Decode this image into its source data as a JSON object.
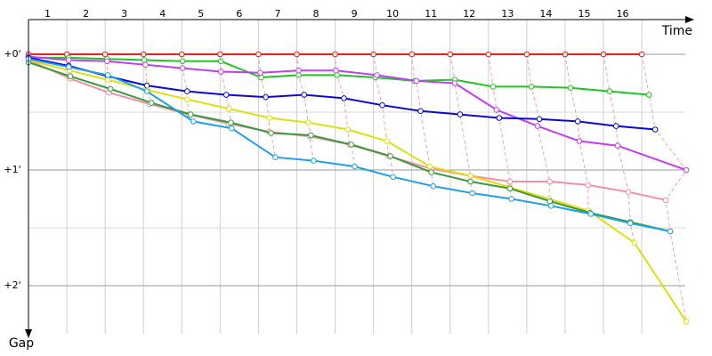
{
  "chart_data": {
    "type": "line",
    "x_label": "Time",
    "y_label": "Gap",
    "xlim": [
      0,
      17.6
    ],
    "ylim": [
      -0.3,
      2.5
    ],
    "xticks": [
      {
        "value": 0.5,
        "label": "1"
      },
      {
        "value": 1.5,
        "label": "2"
      },
      {
        "value": 2.5,
        "label": "3"
      },
      {
        "value": 3.5,
        "label": "4"
      },
      {
        "value": 4.5,
        "label": "5"
      },
      {
        "value": 5.5,
        "label": "6"
      },
      {
        "value": 6.5,
        "label": "7"
      },
      {
        "value": 7.5,
        "label": "8"
      },
      {
        "value": 8.5,
        "label": "9"
      },
      {
        "value": 9.5,
        "label": "10"
      },
      {
        "value": 10.5,
        "label": "11"
      },
      {
        "value": 11.5,
        "label": "12"
      },
      {
        "value": 12.5,
        "label": "13"
      },
      {
        "value": 13.5,
        "label": "14"
      },
      {
        "value": 14.5,
        "label": "15"
      },
      {
        "value": 15.5,
        "label": "16"
      }
    ],
    "xgrid": [
      1,
      2,
      3,
      4,
      5,
      6,
      7,
      8,
      9,
      10,
      11,
      12,
      13,
      14,
      15,
      16
    ],
    "yticks": [
      {
        "value": 0,
        "label": "+0'"
      },
      {
        "value": 1,
        "label": "+1'"
      },
      {
        "value": 2,
        "label": "+2'"
      }
    ],
    "yminor": [
      0.5,
      1.5
    ],
    "series": [
      {
        "color": "#e8201c",
        "x": [
          0,
          1,
          2,
          3,
          4,
          5,
          6,
          7,
          8,
          9,
          10,
          11,
          12,
          13,
          14,
          15,
          16
        ],
        "values": [
          0,
          0,
          0,
          0,
          0,
          0,
          0,
          0,
          0,
          0,
          0,
          0,
          0,
          0,
          0,
          0,
          0
        ]
      },
      {
        "color": "#22c422",
        "x": [
          0,
          1.05,
          2.05,
          3.02,
          4.02,
          5.02,
          6.07,
          7.05,
          8.05,
          9.05,
          10.07,
          11.12,
          12.12,
          13.12,
          14.14,
          15.16,
          16.19
        ],
        "values": [
          0.03,
          0.03,
          0.04,
          0.05,
          0.06,
          0.06,
          0.2,
          0.18,
          0.18,
          0.2,
          0.23,
          0.22,
          0.28,
          0.28,
          0.29,
          0.32,
          0.35
        ]
      },
      {
        "color": "#c040f0",
        "x": [
          0,
          1.05,
          2.05,
          3.05,
          4.02,
          5.02,
          6.05,
          7.05,
          8.02,
          9.09,
          10.12,
          11.12,
          12.21,
          13.28,
          14.37,
          15.37,
          17.16
        ],
        "values": [
          0.02,
          0.05,
          0.06,
          0.09,
          0.12,
          0.15,
          0.16,
          0.14,
          0.14,
          0.18,
          0.23,
          0.25,
          0.48,
          0.62,
          0.75,
          0.79,
          1.0
        ]
      },
      {
        "color": "#0a0ad0",
        "x": [
          0,
          1.05,
          2.07,
          3.09,
          4.14,
          5.16,
          6.19,
          7.19,
          8.23,
          9.23,
          10.23,
          11.26,
          12.28,
          13.33,
          14.33,
          15.33,
          16.35
        ],
        "values": [
          0.03,
          0.1,
          0.19,
          0.27,
          0.32,
          0.35,
          0.37,
          0.35,
          0.38,
          0.44,
          0.49,
          0.52,
          0.55,
          0.56,
          0.58,
          0.62,
          0.65
        ]
      },
      {
        "color": "#f090a8",
        "x": [
          0,
          1.09,
          2.09,
          3.16,
          4.19,
          5.23,
          6.28,
          7.33,
          8.37,
          9.4,
          10.51,
          11.53,
          12.56,
          13.6,
          14.6,
          15.65,
          16.63
        ],
        "values": [
          0.05,
          0.21,
          0.33,
          0.43,
          0.52,
          0.6,
          0.67,
          0.71,
          0.78,
          0.88,
          0.99,
          1.05,
          1.1,
          1.1,
          1.13,
          1.19,
          1.26
        ]
      },
      {
        "color": "#dede10",
        "x": [
          0,
          1.07,
          2.07,
          3.12,
          4.14,
          5.23,
          6.28,
          7.3,
          8.33,
          9.35,
          10.47,
          11.53,
          12.56,
          13.58,
          14.6,
          15.81,
          17.16
        ],
        "values": [
          0.05,
          0.14,
          0.22,
          0.31,
          0.39,
          0.47,
          0.55,
          0.59,
          0.65,
          0.75,
          0.97,
          1.05,
          1.15,
          1.25,
          1.35,
          1.63,
          2.31
        ]
      },
      {
        "color": "#3a9a3a",
        "x": [
          0,
          1.09,
          2.14,
          3.21,
          4.23,
          5.28,
          6.33,
          7.37,
          8.42,
          9.44,
          10.51,
          11.53,
          12.56,
          13.6,
          14.65,
          15.7,
          16.74
        ],
        "values": [
          0.07,
          0.19,
          0.3,
          0.42,
          0.52,
          0.59,
          0.68,
          0.7,
          0.78,
          0.88,
          1.02,
          1.1,
          1.16,
          1.27,
          1.37,
          1.45,
          1.53
        ]
      },
      {
        "color": "#1ea0e6",
        "x": [
          0,
          1.05,
          2.07,
          3.09,
          4.3,
          5.3,
          6.44,
          7.44,
          8.51,
          9.51,
          10.56,
          11.58,
          12.6,
          13.63,
          14.67,
          15.7,
          16.74
        ],
        "values": [
          0.04,
          0.11,
          0.18,
          0.32,
          0.58,
          0.64,
          0.89,
          0.92,
          0.97,
          1.06,
          1.14,
          1.2,
          1.25,
          1.31,
          1.38,
          1.46,
          1.53
        ]
      }
    ]
  }
}
